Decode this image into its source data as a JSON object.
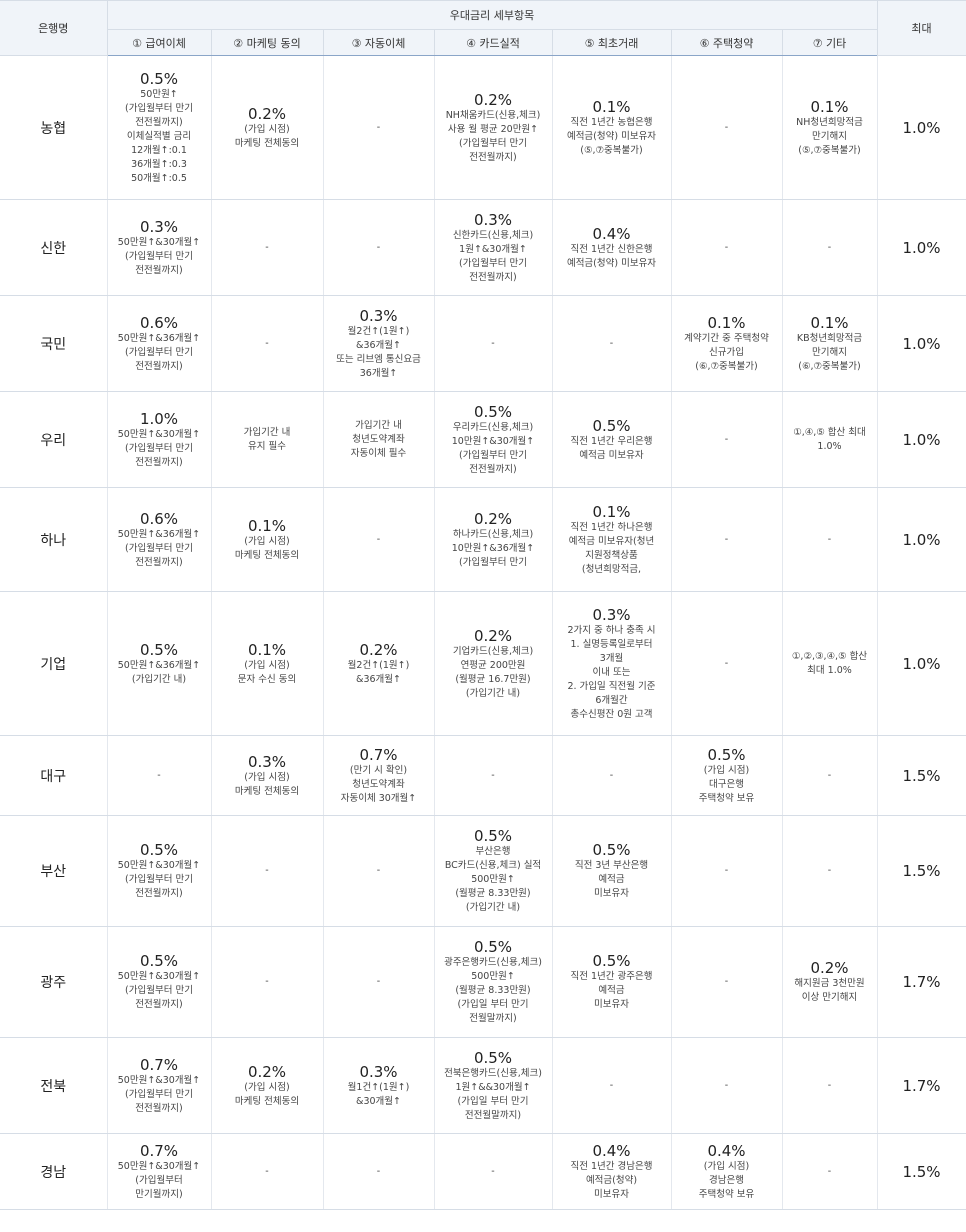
{
  "header": {
    "bank": "은행명",
    "group": "우대금리 세부항목",
    "max": "최대",
    "cols": [
      "① 급여이체",
      "② 마케팅 동의",
      "③ 자동이체",
      "④ 카드실적",
      "⑤ 최초거래",
      "⑥ 주택청약",
      "⑦ 기타"
    ]
  },
  "rows": [
    {
      "bank": "농협",
      "h": 144,
      "max": "1.0%",
      "cells": [
        {
          "v": "0.5%",
          "d": [
            "50만원↑",
            "(가입월부터 만기",
            "전전월까지)",
            "이체실적별 금리",
            "12개월↑:0.1",
            "36개월↑:0.3",
            "50개월↑:0.5"
          ]
        },
        {
          "v": "0.2%",
          "d": [
            "(가입 시점)",
            "마케팅 전체동의"
          ]
        },
        {
          "v": "",
          "d": [
            "-"
          ]
        },
        {
          "v": "0.2%",
          "d": [
            "NH채움카드(신용,체크)",
            "사용 월 평균 20만원↑",
            "(가입월부터 만기",
            "전전월까지)"
          ]
        },
        {
          "v": "0.1%",
          "d": [
            "직전 1년간 농협은행",
            "예적금(청약) 미보유자",
            "(⑤,⑦중복불가)"
          ]
        },
        {
          "v": "",
          "d": [
            "-"
          ]
        },
        {
          "v": "0.1%",
          "d": [
            "NH청년희망적금",
            "만기해지",
            "(⑤,⑦중복불가)"
          ]
        }
      ]
    },
    {
      "bank": "신한",
      "h": 96,
      "max": "1.0%",
      "cells": [
        {
          "v": "0.3%",
          "d": [
            "50만원↑&30개월↑",
            "(가입월부터 만기",
            "전전월까지)"
          ]
        },
        {
          "v": "",
          "d": [
            "-"
          ]
        },
        {
          "v": "",
          "d": [
            "-"
          ]
        },
        {
          "v": "0.3%",
          "d": [
            "신한카드(신용,체크)",
            "1원↑&30개월↑",
            "(가입월부터 만기",
            "전전월까지)"
          ]
        },
        {
          "v": "0.4%",
          "d": [
            "직전 1년간 신한은행",
            "예적금(청약) 미보유자"
          ]
        },
        {
          "v": "",
          "d": [
            "-"
          ]
        },
        {
          "v": "",
          "d": [
            "-"
          ]
        }
      ]
    },
    {
      "bank": "국민",
      "h": 96,
      "max": "1.0%",
      "cells": [
        {
          "v": "0.6%",
          "d": [
            "50만원↑&36개월↑",
            "(가입월부터 만기",
            "전전월까지)"
          ]
        },
        {
          "v": "",
          "d": [
            "-"
          ]
        },
        {
          "v": "0.3%",
          "d": [
            "월2건↑(1원↑)",
            "&36개월↑",
            "또는 리브엠 통신요금",
            "36개월↑"
          ]
        },
        {
          "v": "",
          "d": [
            "-"
          ]
        },
        {
          "v": "",
          "d": [
            "-"
          ]
        },
        {
          "v": "0.1%",
          "d": [
            "계약기간 중 주택청약",
            "신규가입",
            "(⑥,⑦중복불가)"
          ]
        },
        {
          "v": "0.1%",
          "d": [
            "KB청년희망적금",
            "만기해지",
            "(⑥,⑦중복불가)"
          ]
        }
      ]
    },
    {
      "bank": "우리",
      "h": 96,
      "max": "1.0%",
      "cells": [
        {
          "v": "1.0%",
          "d": [
            "50만원↑&30개월↑",
            "(가입월부터 만기",
            "전전월까지)"
          ]
        },
        {
          "v": "",
          "d": [
            "가입기간 내",
            "유지 필수"
          ]
        },
        {
          "v": "",
          "d": [
            "가입기간 내",
            "청년도약계좌",
            "자동이체 필수"
          ]
        },
        {
          "v": "0.5%",
          "d": [
            "우리카드(신용,체크)",
            "10만원↑&30개월↑",
            "(가입월부터 만기",
            "전전월까지)"
          ]
        },
        {
          "v": "0.5%",
          "d": [
            "직전 1년간 우리은행",
            "예적금 미보유자"
          ]
        },
        {
          "v": "",
          "d": [
            "-"
          ]
        },
        {
          "v": "",
          "d": [
            "①,④,⑤ 합산 최대",
            "1.0%"
          ]
        }
      ]
    },
    {
      "bank": "하나",
      "h": 104,
      "max": "1.0%",
      "cells": [
        {
          "v": "0.6%",
          "d": [
            "50만원↑&36개월↑",
            "(가입월부터 만기",
            "전전월까지)"
          ]
        },
        {
          "v": "0.1%",
          "d": [
            "(가입 시점)",
            "마케팅 전체동의"
          ]
        },
        {
          "v": "",
          "d": [
            "-"
          ]
        },
        {
          "v": "0.2%",
          "d": [
            "하나카드(신용,체크)",
            "10만원↑&36개월↑",
            "(가입월부터 만기"
          ]
        },
        {
          "v": "0.1%",
          "d": [
            "직전 1년간 하나은행",
            "예적금 미보유자(청년",
            "지원정책상품",
            "(청년희망적금,"
          ]
        },
        {
          "v": "",
          "d": [
            "-"
          ]
        },
        {
          "v": "",
          "d": [
            "-"
          ]
        }
      ]
    },
    {
      "bank": "기업",
      "h": 144,
      "max": "1.0%",
      "cells": [
        {
          "v": "0.5%",
          "d": [
            "50만원↑&36개월↑",
            "(가입기간 내)"
          ]
        },
        {
          "v": "0.1%",
          "d": [
            "(가입 시점)",
            "문자 수신 동의"
          ]
        },
        {
          "v": "0.2%",
          "d": [
            "월2건↑(1원↑)",
            "&36개월↑"
          ]
        },
        {
          "v": "0.2%",
          "d": [
            "기업카드(신용,체크)",
            "연평균 200만원",
            "(월평균 16.7만원)",
            "(가입기간 내)"
          ]
        },
        {
          "v": "0.3%",
          "d": [
            "2가지 중 하나 충족 시",
            "1. 실명등록일로부터",
            "3개월",
            "이내 또는",
            "2. 가입일 직전월 기준",
            "6개월간",
            "총수신평잔 0원 고객"
          ]
        },
        {
          "v": "",
          "d": [
            "-"
          ]
        },
        {
          "v": "",
          "d": [
            "①,②,③,④,⑤ 합산",
            "최대 1.0%"
          ]
        }
      ]
    },
    {
      "bank": "대구",
      "h": 80,
      "max": "1.5%",
      "cells": [
        {
          "v": "",
          "d": [
            "-"
          ]
        },
        {
          "v": "0.3%",
          "d": [
            "(가입 시점)",
            "마케팅 전체동의"
          ]
        },
        {
          "v": "0.7%",
          "d": [
            "(만기 시 확인)",
            "청년도약계좌",
            "자동이체 30개월↑"
          ]
        },
        {
          "v": "",
          "d": [
            "-"
          ]
        },
        {
          "v": "",
          "d": [
            "-"
          ]
        },
        {
          "v": "0.5%",
          "d": [
            "(가입 시점)",
            "대구은행",
            "주택청약 보유"
          ]
        },
        {
          "v": "",
          "d": [
            "-"
          ]
        }
      ]
    },
    {
      "bank": "부산",
      "h": 111,
      "max": "1.5%",
      "cells": [
        {
          "v": "0.5%",
          "d": [
            "50만원↑&30개월↑",
            "(가입월부터 만기",
            "전전월까지)"
          ]
        },
        {
          "v": "",
          "d": [
            "-"
          ]
        },
        {
          "v": "",
          "d": [
            "-"
          ]
        },
        {
          "v": "0.5%",
          "d": [
            "부산은행",
            "BC카드(신용,체크) 실적",
            "500만원↑",
            "(월평균 8.33만원)",
            "(가입기간 내)"
          ]
        },
        {
          "v": "0.5%",
          "d": [
            "직전 3년 부산은행",
            "예적금",
            "미보유자"
          ]
        },
        {
          "v": "",
          "d": [
            "-"
          ]
        },
        {
          "v": "",
          "d": [
            "-"
          ]
        }
      ]
    },
    {
      "bank": "광주",
      "h": 111,
      "max": "1.7%",
      "cells": [
        {
          "v": "0.5%",
          "d": [
            "50만원↑&30개월↑",
            "(가입월부터 만기",
            "전전월까지)"
          ]
        },
        {
          "v": "",
          "d": [
            "-"
          ]
        },
        {
          "v": "",
          "d": [
            "-"
          ]
        },
        {
          "v": "0.5%",
          "d": [
            "광주은행카드(신용,체크)",
            "500만원↑",
            "(월평균 8.33만원)",
            "(가입일 부터 만기",
            "전월말까지)"
          ]
        },
        {
          "v": "0.5%",
          "d": [
            "직전 1년간 광주은행",
            "예적금",
            "미보유자"
          ]
        },
        {
          "v": "",
          "d": [
            "-"
          ]
        },
        {
          "v": "0.2%",
          "d": [
            "해지원금 3천만원",
            "이상 만기해지"
          ]
        }
      ]
    },
    {
      "bank": "전북",
      "h": 96,
      "max": "1.7%",
      "cells": [
        {
          "v": "0.7%",
          "d": [
            "50만원↑&30개월↑",
            "(가입월부터 만기",
            "전전월까지)"
          ]
        },
        {
          "v": "0.2%",
          "d": [
            "(가입 시점)",
            "마케팅 전체동의"
          ]
        },
        {
          "v": "0.3%",
          "d": [
            "월1건↑(1원↑)",
            "&30개월↑"
          ]
        },
        {
          "v": "0.5%",
          "d": [
            "전북은행카드(신용,체크)",
            "1원↑&&30개월↑",
            "(가입일 부터 만기",
            "전전월말까지)"
          ]
        },
        {
          "v": "",
          "d": [
            "-"
          ]
        },
        {
          "v": "",
          "d": [
            "-"
          ]
        },
        {
          "v": "",
          "d": [
            "-"
          ]
        }
      ]
    },
    {
      "bank": "경남",
      "h": 76,
      "max": "1.5%",
      "cells": [
        {
          "v": "0.7%",
          "d": [
            "50만원↑&30개월↑",
            "(가입월부터",
            "만기월까지)"
          ]
        },
        {
          "v": "",
          "d": [
            "-"
          ]
        },
        {
          "v": "",
          "d": [
            "-"
          ]
        },
        {
          "v": "",
          "d": [
            "-"
          ]
        },
        {
          "v": "0.4%",
          "d": [
            "직전 1년간 경남은행",
            "예적금(청약)",
            "미보유자"
          ]
        },
        {
          "v": "0.4%",
          "d": [
            "(가입 시점)",
            "경남은행",
            "주택청약 보유"
          ]
        },
        {
          "v": "",
          "d": [
            "-"
          ]
        }
      ]
    }
  ]
}
